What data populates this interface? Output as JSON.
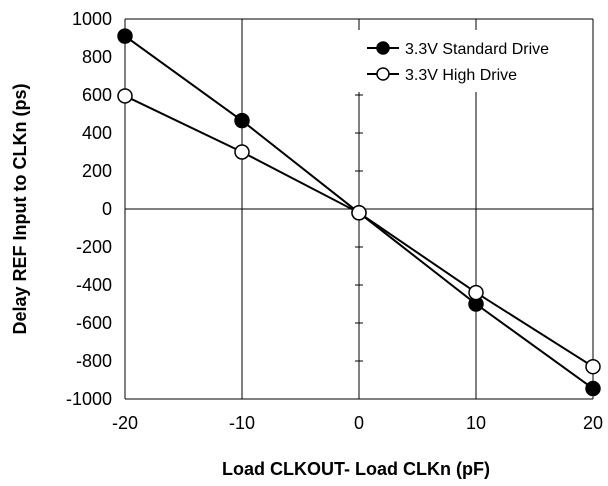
{
  "chart_data": {
    "type": "line",
    "title": "",
    "xlabel": "Load CLKOUT- Load CLKn (pF)",
    "ylabel": "Delay REF Input to CLKn (ps)",
    "xlim": [
      -20,
      20
    ],
    "ylim": [
      -1000,
      1000
    ],
    "x_ticks": [
      -20,
      -10,
      0,
      10,
      20
    ],
    "y_ticks": [
      -1000,
      -800,
      -600,
      -400,
      -200,
      0,
      200,
      400,
      600,
      800,
      1000
    ],
    "x_tick_labels": [
      "-20",
      "-10",
      "0",
      "10",
      "20"
    ],
    "y_tick_labels": [
      "-1000",
      "-800",
      "-600",
      "-400",
      "-200",
      "0",
      "200",
      "400",
      "600",
      "800",
      "1000"
    ],
    "grid": true,
    "legend_position": "top-right",
    "x": [
      -20,
      -10,
      0,
      10,
      20
    ],
    "series": [
      {
        "name": "3.3V Standard Drive",
        "marker": "filled-circle",
        "color": "#000000",
        "values": [
          910,
          465,
          -20,
          -500,
          -945
        ]
      },
      {
        "name": "3.3V High Drive",
        "marker": "open-circle",
        "color": "#000000",
        "values": [
          595,
          300,
          -20,
          -440,
          -830
        ]
      }
    ]
  }
}
